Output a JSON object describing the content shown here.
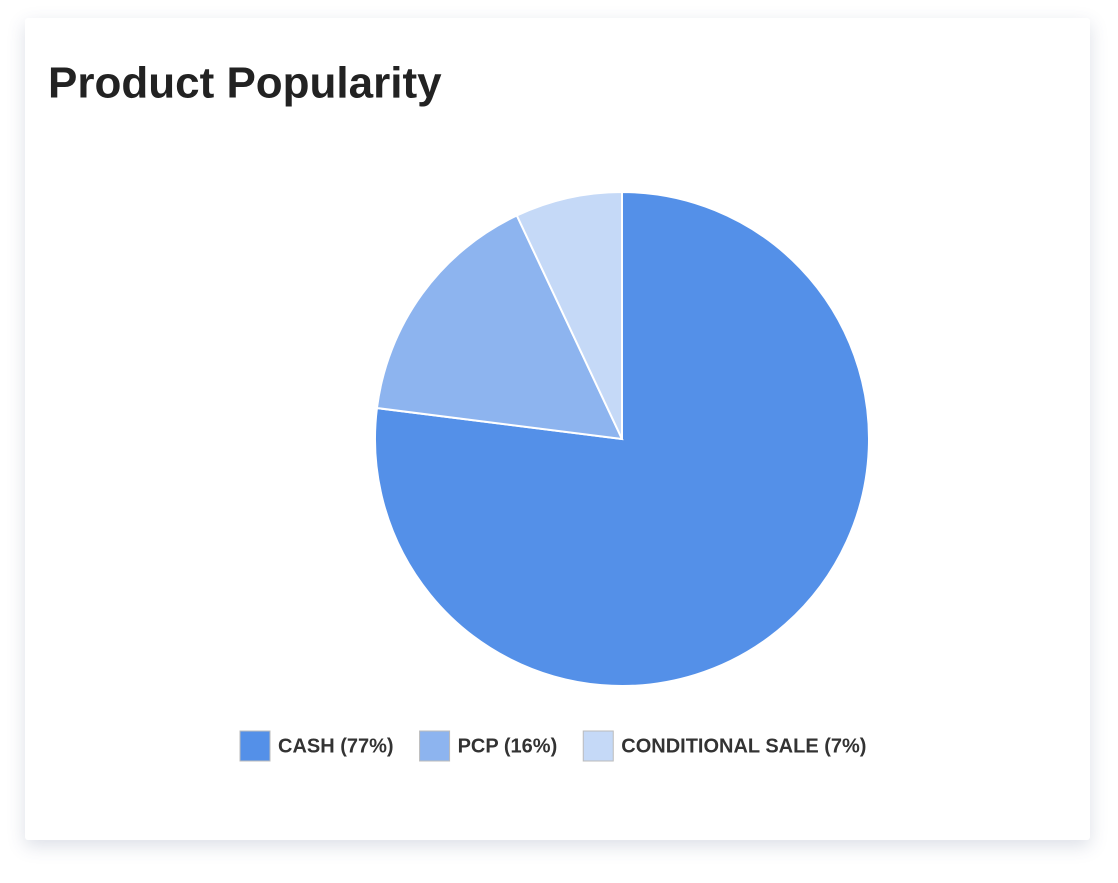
{
  "chart_data": {
    "type": "pie",
    "title": "Product Popularity",
    "categories": [
      "CASH (77%)",
      "PCP (16%)",
      "CONDITIONAL SALE (7%)"
    ],
    "values": [
      77,
      16,
      7
    ],
    "colors": [
      "#5490e8",
      "#8db4ef",
      "#c5d9f7"
    ],
    "legend": "bottom"
  }
}
